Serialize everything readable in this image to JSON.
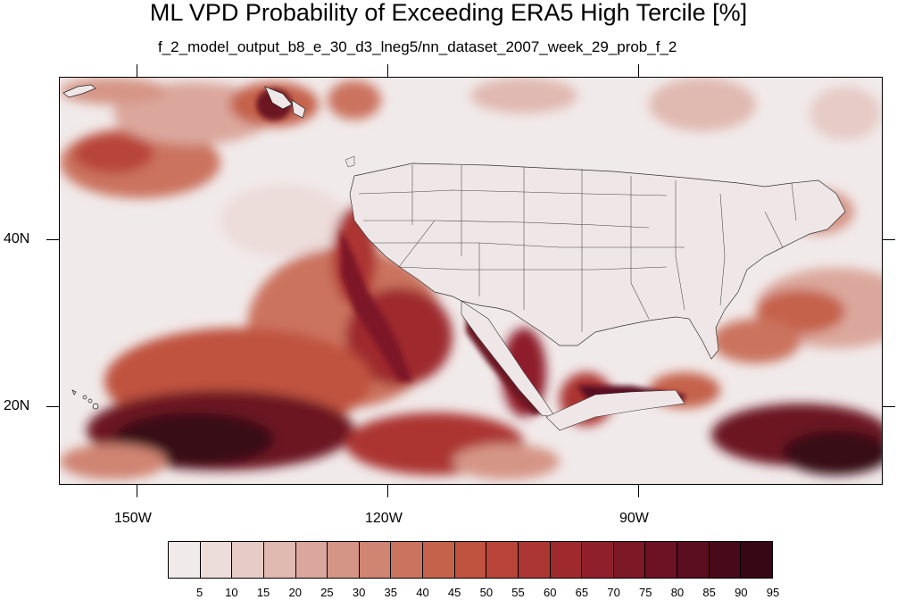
{
  "title": "ML VPD Probability of Exceeding ERA5 High Tercile [%]",
  "subtitle": "f_2_model_output_b8_e_30_d3_lneg5/nn_dataset_2007_week_29_prob_f_2",
  "lat_labels": [
    "40N",
    "20N"
  ],
  "lon_labels": [
    "150W",
    "120W",
    "90W"
  ],
  "colorbar": {
    "labels": [
      "5",
      "10",
      "15",
      "20",
      "25",
      "30",
      "35",
      "40",
      "45",
      "50",
      "55",
      "60",
      "65",
      "70",
      "75",
      "80",
      "85",
      "90",
      "95"
    ],
    "colors": [
      "#f1eaea",
      "#ecdcda",
      "#e6cbc6",
      "#e0b9b1",
      "#dba79c",
      "#d59586",
      "#d08472",
      "#cb735f",
      "#c5624c",
      "#c05240",
      "#b8443a",
      "#ac3633",
      "#9e2a2e",
      "#8f1f2a",
      "#7d1827",
      "#6c1224",
      "#5a0e20",
      "#480a1b",
      "#380716"
    ]
  }
}
